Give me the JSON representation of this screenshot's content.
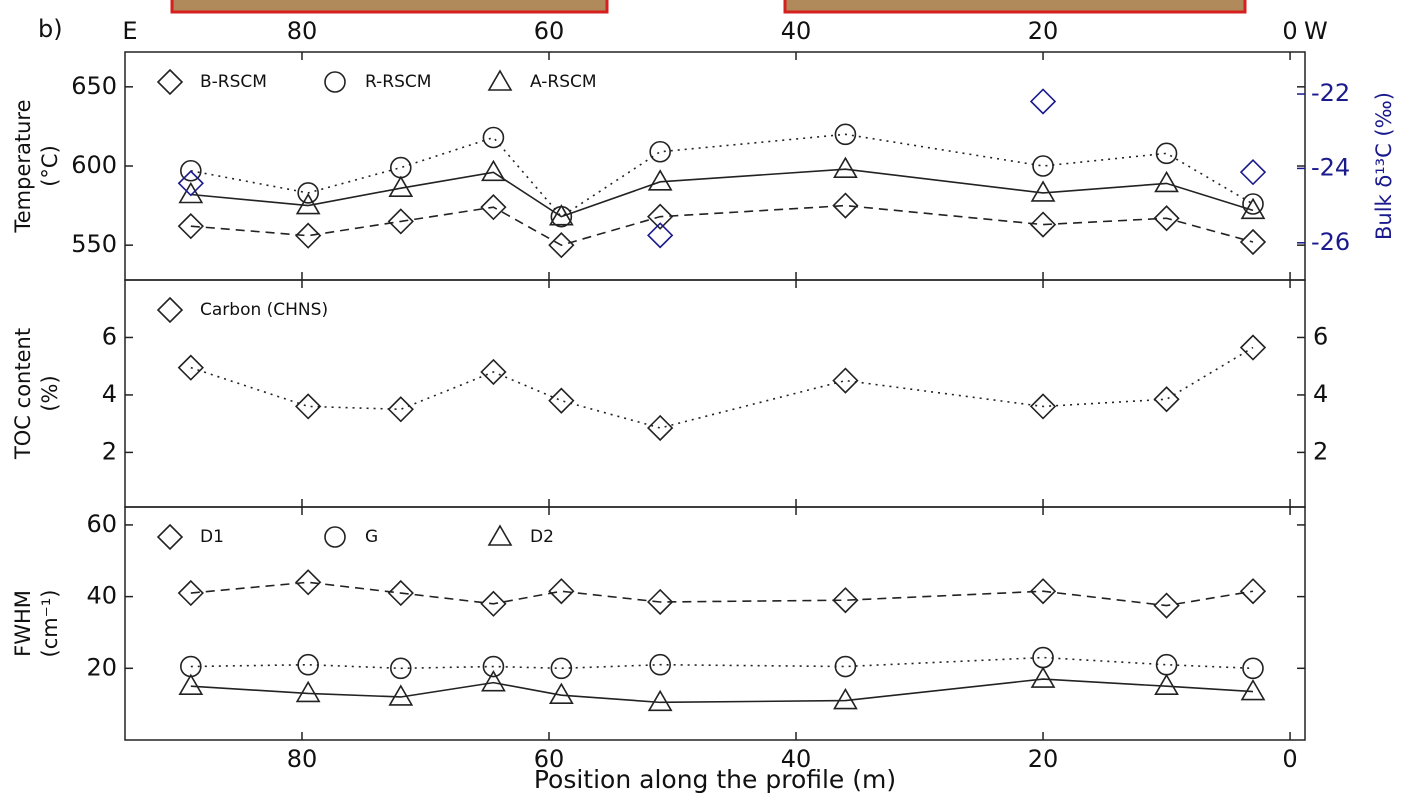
{
  "chart_data": [
    {
      "type": "line",
      "panel_label": "b)",
      "east_label": "E",
      "west_label": "W",
      "ylabel": [
        "Temperature",
        "(°C)"
      ],
      "y2label": "Bulk δ¹³C (‰)",
      "x": [
        89,
        79.5,
        72,
        64.5,
        59,
        51,
        36,
        20,
        10,
        3
      ],
      "xlim": [
        94.33,
        -1.21
      ],
      "xticks": [
        80,
        60,
        40,
        20,
        0
      ],
      "ylim": [
        528,
        672
      ],
      "yticks": [
        550,
        600,
        650
      ],
      "y2lim": [
        -27,
        -20.87
      ],
      "y2ticks": [
        -26,
        -24,
        -22
      ],
      "y2color": "#1a1a8c",
      "series": [
        {
          "name": "B-RSCM",
          "color": "#222222",
          "marker": "diamond",
          "linestyle": "dashed",
          "values": [
            562,
            556,
            565,
            574,
            550,
            568,
            575,
            563,
            567,
            552
          ]
        },
        {
          "name": "R-RSCM",
          "color": "#222222",
          "marker": "circle",
          "linestyle": "dotted",
          "values": [
            597,
            583,
            599,
            618,
            568,
            609,
            620,
            600,
            608,
            576
          ]
        },
        {
          "name": "A-RSCM",
          "color": "#222222",
          "marker": "triangle",
          "linestyle": "solid",
          "values": [
            582,
            575,
            586,
            596,
            568,
            590,
            598,
            583,
            589,
            572
          ]
        },
        {
          "color": "#1a1a8c",
          "marker": "diamond",
          "linestyle": "none",
          "axis": "y2",
          "values": [
            -24.4,
            null,
            null,
            null,
            null,
            -25.8,
            null,
            -22.2,
            null,
            -24.1
          ]
        }
      ]
    },
    {
      "type": "line",
      "ylabel": [
        "TOC content",
        "(%)"
      ],
      "x": [
        89,
        79.5,
        72,
        64.5,
        59,
        51,
        36,
        20,
        10,
        3
      ],
      "xlim": [
        94.33,
        -1.21
      ],
      "xticks": [
        80,
        60,
        40,
        20,
        0
      ],
      "ylim": [
        0.1,
        8
      ],
      "yticks": [
        2,
        4,
        6
      ],
      "mirror_yticks": true,
      "series": [
        {
          "name": "Carbon (CHNS)",
          "color": "#222222",
          "marker": "diamond",
          "linestyle": "dotted",
          "values": [
            4.95,
            3.6,
            3.5,
            4.8,
            3.8,
            2.85,
            4.5,
            3.6,
            3.85,
            5.65
          ]
        }
      ]
    },
    {
      "type": "line",
      "ylabel": [
        "FWHM",
        "(cm⁻¹)"
      ],
      "xlabel": "Position along the profile (m)",
      "x": [
        89,
        79.5,
        72,
        64.5,
        59,
        51,
        36,
        20,
        10,
        3
      ],
      "xlim": [
        94.33,
        -1.21
      ],
      "xticks": [
        80,
        60,
        40,
        20,
        0
      ],
      "ylim": [
        0,
        65
      ],
      "yticks": [
        20,
        40,
        60
      ],
      "series": [
        {
          "name": "D1",
          "color": "#222222",
          "marker": "diamond",
          "linestyle": "dashed",
          "values": [
            41,
            44,
            41,
            38,
            41.5,
            38.5,
            39,
            41.5,
            37.5,
            41.5
          ]
        },
        {
          "name": "G",
          "color": "#222222",
          "marker": "circle",
          "linestyle": "dotted",
          "values": [
            20.5,
            21,
            20,
            20.5,
            20,
            21,
            20.5,
            23,
            21,
            20
          ]
        },
        {
          "name": "D2",
          "color": "#222222",
          "marker": "triangle",
          "linestyle": "solid",
          "values": [
            15,
            13,
            12,
            16,
            12.5,
            10.5,
            11,
            17,
            15,
            13.5
          ]
        }
      ]
    }
  ]
}
